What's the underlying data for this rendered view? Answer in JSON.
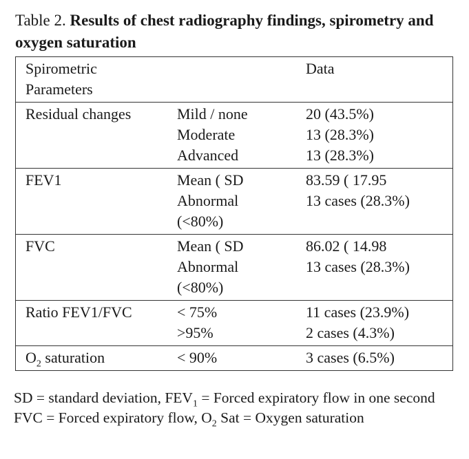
{
  "title": {
    "label": "Table 2.",
    "text": "Results of chest radiography findings, spirometry and oxygen saturation"
  },
  "table": {
    "header": {
      "parameter": [
        "Spirometric",
        "Parameters"
      ],
      "data": "Data"
    },
    "rows": [
      {
        "label": [
          {
            "text": "Residual changes"
          }
        ],
        "items": [
          {
            "param": [
              "Mild / none"
            ],
            "value": "20 (43.5%)"
          },
          {
            "param": [
              "Moderate"
            ],
            "value": "13 (28.3%)"
          },
          {
            "param": [
              "Advanced"
            ],
            "value": "13 (28.3%)"
          }
        ]
      },
      {
        "label": [
          {
            "text": "FEV1"
          }
        ],
        "items": [
          {
            "param": [
              "Mean ( SD"
            ],
            "value": "83.59 ( 17.95"
          },
          {
            "param": [
              "Abnormal",
              "(<80%)"
            ],
            "value": "13 cases (28.3%)"
          }
        ]
      },
      {
        "label": [
          {
            "text": "FVC"
          }
        ],
        "items": [
          {
            "param": [
              "Mean ( SD"
            ],
            "value": "86.02 ( 14.98"
          },
          {
            "param": [
              "Abnormal",
              "(<80%)"
            ],
            "value": "13 cases (28.3%)"
          }
        ]
      },
      {
        "label": [
          {
            "text": "Ratio FEV1/FVC"
          }
        ],
        "items": [
          {
            "param": [
              "< 75%"
            ],
            "value": "11 cases (23.9%)"
          },
          {
            "param": [
              ">95%"
            ],
            "value": "2 cases (4.3%)"
          }
        ]
      },
      {
        "label": [
          {
            "text": "O"
          },
          {
            "sub": "2"
          },
          {
            "text": " saturation"
          }
        ],
        "items": [
          {
            "param": [
              "< 90%"
            ],
            "value": "3 cases (6.5%)"
          }
        ]
      }
    ]
  },
  "footnote": [
    {
      "text": "SD = standard deviation, FEV"
    },
    {
      "sub": "1"
    },
    {
      "text": " = Forced expiratory flow in one second FVC = Forced expiratory flow, O"
    },
    {
      "sub": "2"
    },
    {
      "text": " Sat = Oxygen saturation"
    }
  ]
}
